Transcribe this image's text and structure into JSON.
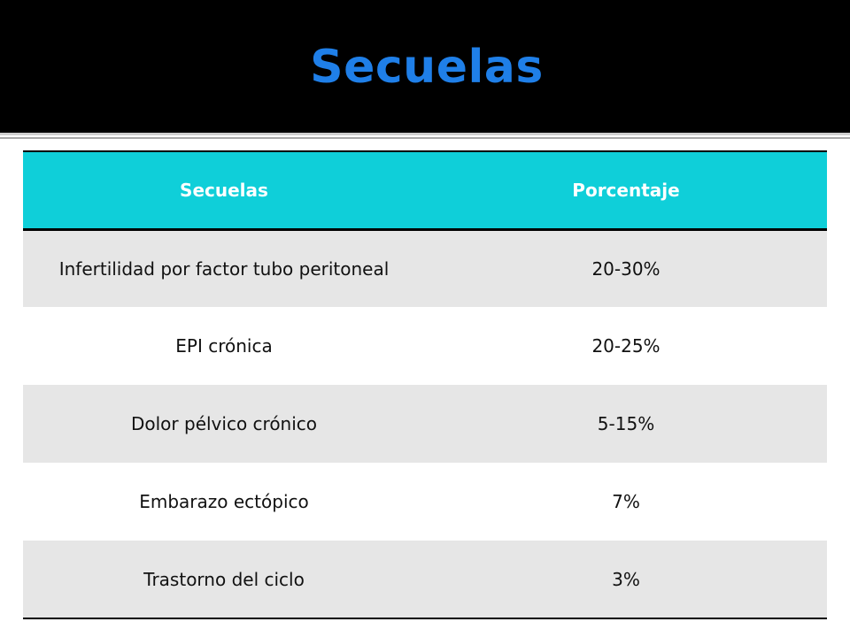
{
  "slide": {
    "title": "Secuelas",
    "colors": {
      "title_bar": "#000000",
      "title_text": "#1f7fe8",
      "header_bg": "#0fcfd9",
      "header_text": "#ffffff",
      "row_shaded": "#e6e6e6",
      "row_plain": "#ffffff"
    }
  },
  "table": {
    "headers": [
      "Secuelas",
      "Porcentaje"
    ],
    "rows": [
      {
        "secuela": "Infertilidad por factor tubo peritoneal",
        "porcentaje": "20-30%"
      },
      {
        "secuela": "EPI crónica",
        "porcentaje": "20-25%"
      },
      {
        "secuela": "Dolor pélvico crónico",
        "porcentaje": "5-15%"
      },
      {
        "secuela": "Embarazo ectópico",
        "porcentaje": "7%"
      },
      {
        "secuela": "Trastorno del ciclo",
        "porcentaje": "3%"
      }
    ]
  }
}
